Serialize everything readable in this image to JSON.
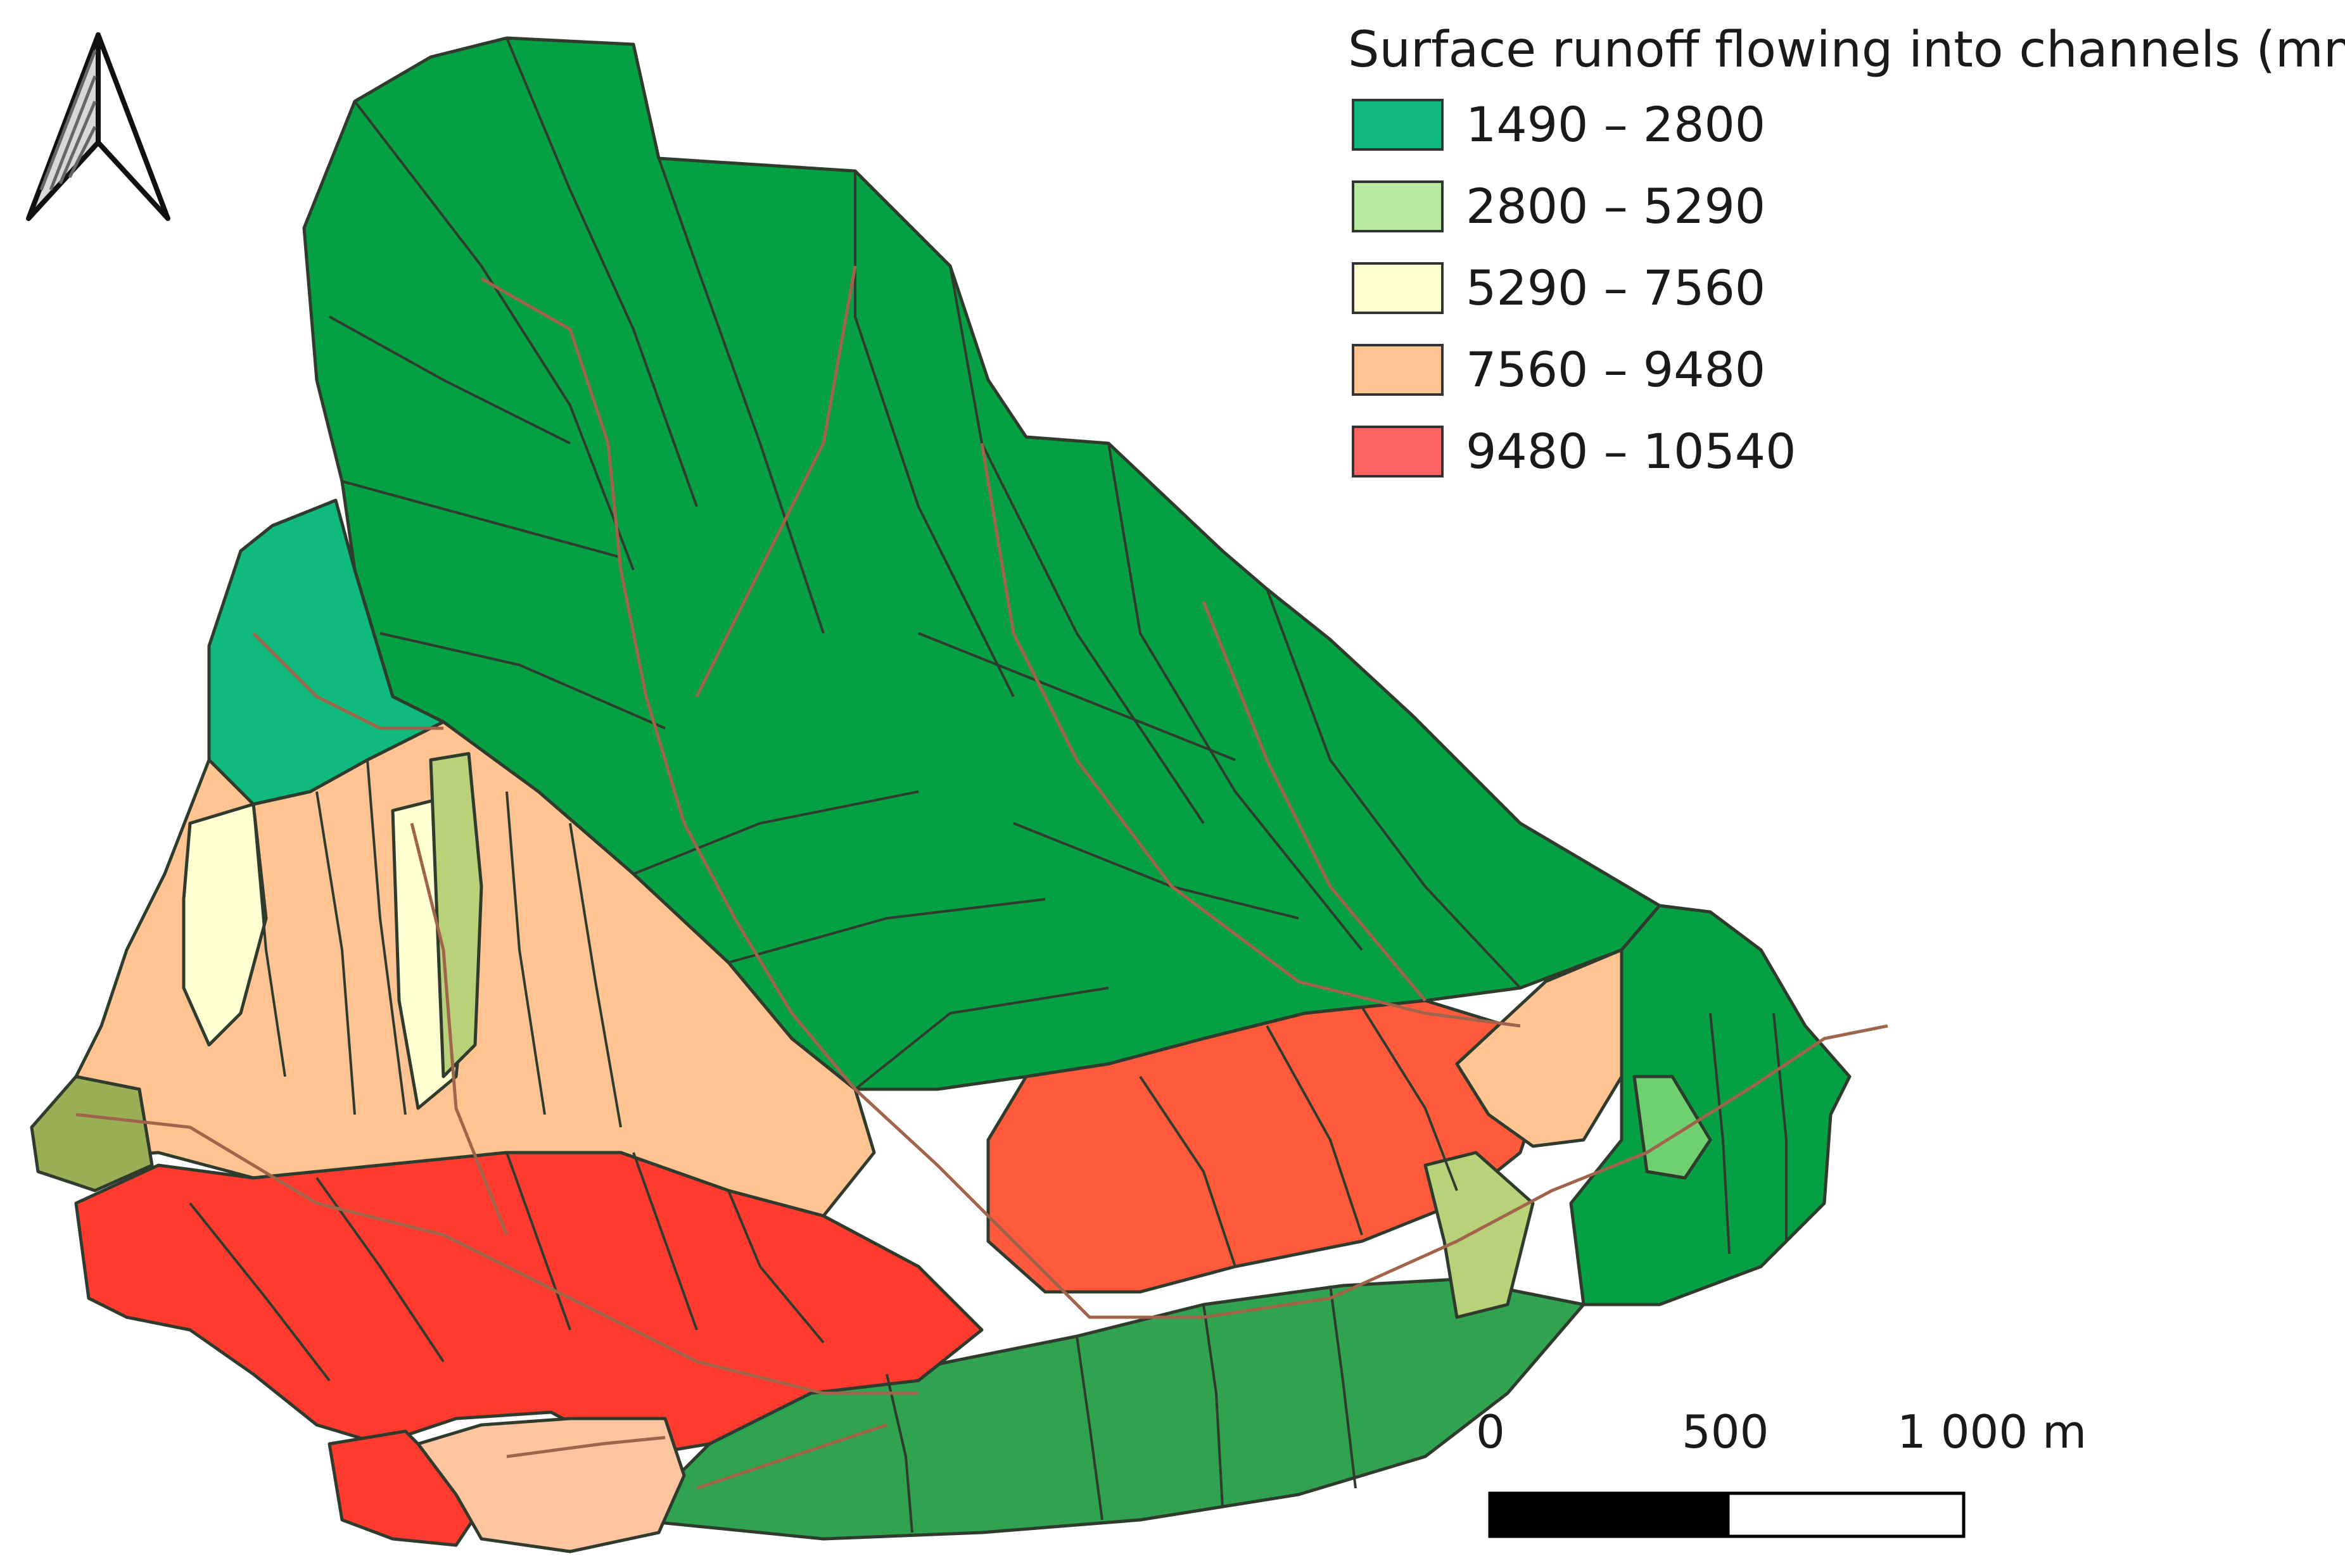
{
  "legend": {
    "title": "Surface runoff flowing into channels (mm)",
    "classes": [
      {
        "label": "1490 – 2800",
        "color": "#10b97e"
      },
      {
        "label": "2800 – 5290",
        "color": "#b9e8a1"
      },
      {
        "label": "5290 – 7560",
        "color": "#ffffd2"
      },
      {
        "label": "7560 – 9480",
        "color": "#ffc492"
      },
      {
        "label": "9480 – 10540",
        "color": "#ff6464"
      }
    ]
  },
  "scale_bar": {
    "labels": [
      "0",
      "500",
      "1 000 m"
    ]
  },
  "north_arrow": {
    "icon": "north-arrow-icon"
  },
  "colors": {
    "dark_green": "#05a044",
    "mid_green": "#31a24f",
    "outline": "#2f3b2c",
    "stream": "#a0644b"
  }
}
